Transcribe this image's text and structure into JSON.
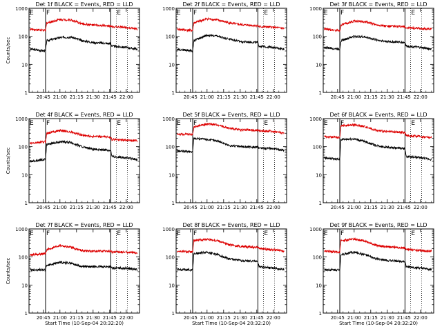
{
  "figure": {
    "ylabel": "Counts/sec",
    "xlabel": "Start Time (10-Sep-04 20:32:20)",
    "x_ticks": [
      "20:45",
      "21:00",
      "21:15",
      "21:30",
      "21:45",
      "22:00"
    ],
    "y_ticks": [
      "1",
      "10",
      "100",
      "1000"
    ],
    "marker_labels": [
      "E",
      "F",
      "E"
    ]
  },
  "colors": {
    "events": "#000000",
    "lld": "#dd0000",
    "axes": "#000000",
    "background": "#ffffff"
  },
  "chart_data": [
    {
      "type": "line",
      "title": "Det 1f BLACK = Events, RED = LLD",
      "xlabel": "",
      "ylabel": "Counts/sec",
      "ylog": true,
      "ylim": [
        1,
        1000
      ],
      "xlim": [
        "20:32",
        "22:12"
      ],
      "markers": {
        "solid": [
          "20:47",
          "21:46"
        ],
        "dotted": [
          "21:51",
          "22:01"
        ]
      },
      "series": [
        {
          "name": "Events",
          "x": [
            "20:33",
            "20:47",
            "20:48",
            "21:00",
            "21:10",
            "21:20",
            "21:30",
            "21:46",
            "21:47",
            "22:00",
            "22:10"
          ],
          "y": [
            35,
            30,
            70,
            90,
            95,
            70,
            60,
            55,
            45,
            40,
            35
          ]
        },
        {
          "name": "LLD",
          "x": [
            "20:33",
            "20:47",
            "20:48",
            "21:00",
            "21:10",
            "21:20",
            "21:30",
            "21:46",
            "21:47",
            "22:00",
            "22:10"
          ],
          "y": [
            180,
            160,
            300,
            400,
            380,
            280,
            250,
            230,
            220,
            210,
            180
          ]
        }
      ]
    },
    {
      "type": "line",
      "title": "Det 2f BLACK = Events, RED = LLD",
      "xlabel": "",
      "ylabel": "",
      "ylog": true,
      "ylim": [
        1,
        1000
      ],
      "xlim": [
        "20:32",
        "22:12"
      ],
      "markers": {
        "solid": [
          "20:47",
          "21:46"
        ],
        "dotted": [
          "21:51",
          "22:01"
        ]
      },
      "series": [
        {
          "name": "Events",
          "x": [
            "20:33",
            "20:47",
            "20:48",
            "21:00",
            "21:10",
            "21:20",
            "21:30",
            "21:46",
            "21:47",
            "22:00",
            "22:10"
          ],
          "y": [
            35,
            30,
            70,
            110,
            100,
            80,
            65,
            60,
            45,
            40,
            35
          ]
        },
        {
          "name": "LLD",
          "x": [
            "20:33",
            "20:47",
            "20:48",
            "21:00",
            "21:10",
            "21:20",
            "21:30",
            "21:46",
            "21:47",
            "22:00",
            "22:10"
          ],
          "y": [
            180,
            160,
            300,
            420,
            380,
            300,
            260,
            240,
            220,
            210,
            190
          ]
        }
      ]
    },
    {
      "type": "line",
      "title": "Det 3f BLACK = Events, RED = LLD",
      "xlabel": "",
      "ylabel": "",
      "ylog": true,
      "ylim": [
        1,
        1000
      ],
      "xlim": [
        "20:32",
        "22:12"
      ],
      "markers": {
        "solid": [
          "20:47",
          "21:46"
        ],
        "dotted": [
          "21:51",
          "22:01"
        ]
      },
      "series": [
        {
          "name": "Events",
          "x": [
            "20:33",
            "20:47",
            "20:48",
            "21:00",
            "21:10",
            "21:20",
            "21:30",
            "21:46",
            "21:47",
            "22:00",
            "22:10"
          ],
          "y": [
            40,
            35,
            70,
            100,
            95,
            75,
            65,
            60,
            45,
            40,
            35
          ]
        },
        {
          "name": "LLD",
          "x": [
            "20:33",
            "20:47",
            "20:48",
            "21:00",
            "21:10",
            "21:20",
            "21:30",
            "21:46",
            "21:47",
            "22:00",
            "22:10"
          ],
          "y": [
            180,
            160,
            250,
            350,
            330,
            260,
            230,
            220,
            200,
            190,
            180
          ]
        }
      ]
    },
    {
      "type": "line",
      "title": "Det 4f BLACK = Events, RED = LLD",
      "xlabel": "",
      "ylabel": "Counts/sec",
      "ylog": true,
      "ylim": [
        1,
        1000
      ],
      "xlim": [
        "20:32",
        "22:12"
      ],
      "markers": {
        "solid": [
          "20:47",
          "21:46"
        ],
        "dotted": [
          "21:51",
          "22:01"
        ]
      },
      "series": [
        {
          "name": "Events",
          "x": [
            "20:33",
            "20:47",
            "20:48",
            "21:00",
            "21:10",
            "21:20",
            "21:30",
            "21:46",
            "21:47",
            "22:00",
            "22:10"
          ],
          "y": [
            30,
            35,
            120,
            150,
            140,
            100,
            80,
            75,
            45,
            40,
            35
          ]
        },
        {
          "name": "LLD",
          "x": [
            "20:33",
            "20:47",
            "20:48",
            "21:00",
            "21:10",
            "21:20",
            "21:30",
            "21:46",
            "21:47",
            "22:00",
            "22:10"
          ],
          "y": [
            130,
            150,
            300,
            380,
            330,
            260,
            230,
            220,
            180,
            170,
            160
          ]
        }
      ]
    },
    {
      "type": "line",
      "title": "Det 5f BLACK = Events, RED = LLD",
      "xlabel": "",
      "ylabel": "",
      "ylog": true,
      "ylim": [
        1,
        1000
      ],
      "xlim": [
        "20:32",
        "22:12"
      ],
      "markers": {
        "solid": [
          "20:47",
          "21:46"
        ],
        "dotted": [
          "21:51",
          "22:01"
        ]
      },
      "series": [
        {
          "name": "Events",
          "x": [
            "20:33",
            "20:47",
            "20:48",
            "21:00",
            "21:10",
            "21:20",
            "21:30",
            "21:46",
            "21:47",
            "22:00",
            "22:10"
          ],
          "y": [
            70,
            65,
            200,
            180,
            160,
            110,
            100,
            95,
            90,
            85,
            75
          ]
        },
        {
          "name": "LLD",
          "x": [
            "20:33",
            "20:47",
            "20:48",
            "21:00",
            "21:10",
            "21:20",
            "21:30",
            "21:46",
            "21:47",
            "22:00",
            "22:10"
          ],
          "y": [
            280,
            270,
            500,
            650,
            600,
            450,
            400,
            380,
            370,
            350,
            300
          ]
        }
      ]
    },
    {
      "type": "line",
      "title": "Det 6f BLACK = Events, RED = LLD",
      "xlabel": "",
      "ylabel": "",
      "ylog": true,
      "ylim": [
        1,
        1000
      ],
      "xlim": [
        "20:32",
        "22:12"
      ],
      "markers": {
        "solid": [
          "20:47",
          "21:46"
        ],
        "dotted": [
          "21:51",
          "22:01"
        ]
      },
      "series": [
        {
          "name": "Events",
          "x": [
            "20:33",
            "20:47",
            "20:48",
            "21:00",
            "21:10",
            "21:20",
            "21:30",
            "21:46",
            "21:47",
            "22:00",
            "22:10"
          ],
          "y": [
            40,
            35,
            180,
            190,
            150,
            110,
            95,
            85,
            45,
            40,
            35
          ]
        },
        {
          "name": "LLD",
          "x": [
            "20:33",
            "20:47",
            "20:48",
            "21:00",
            "21:10",
            "21:20",
            "21:30",
            "21:46",
            "21:47",
            "22:00",
            "22:10"
          ],
          "y": [
            230,
            210,
            550,
            600,
            520,
            380,
            340,
            320,
            250,
            230,
            210
          ]
        }
      ]
    },
    {
      "type": "line",
      "title": "Det 7f BLACK = Events, RED = LLD",
      "xlabel": "Start Time (10-Sep-04 20:32:20)",
      "ylabel": "Counts/sec",
      "ylog": true,
      "ylim": [
        1,
        1000
      ],
      "xlim": [
        "20:32",
        "22:12"
      ],
      "markers": {
        "solid": [
          "20:47",
          "21:46"
        ],
        "dotted": [
          "21:51",
          "22:01"
        ]
      },
      "series": [
        {
          "name": "Events",
          "x": [
            "20:33",
            "20:47",
            "20:48",
            "21:00",
            "21:10",
            "21:20",
            "21:30",
            "21:46",
            "21:47",
            "22:00",
            "22:10"
          ],
          "y": [
            35,
            35,
            50,
            65,
            60,
            45,
            45,
            45,
            40,
            40,
            35
          ]
        },
        {
          "name": "LLD",
          "x": [
            "20:33",
            "20:47",
            "20:48",
            "21:00",
            "21:10",
            "21:20",
            "21:30",
            "21:46",
            "21:47",
            "22:00",
            "22:10"
          ],
          "y": [
            120,
            130,
            180,
            260,
            220,
            170,
            160,
            160,
            150,
            150,
            140
          ]
        }
      ]
    },
    {
      "type": "line",
      "title": "Det 8f BLACK = Events, RED = LLD",
      "xlabel": "Start Time (10-Sep-04 20:32:20)",
      "ylabel": "",
      "ylog": true,
      "ylim": [
        1,
        1000
      ],
      "xlim": [
        "20:32",
        "22:12"
      ],
      "markers": {
        "solid": [
          "20:47",
          "21:46"
        ],
        "dotted": [
          "21:51",
          "22:01"
        ]
      },
      "series": [
        {
          "name": "Events",
          "x": [
            "20:33",
            "20:47",
            "20:48",
            "21:00",
            "21:10",
            "21:20",
            "21:30",
            "21:46",
            "21:47",
            "22:00",
            "22:10"
          ],
          "y": [
            35,
            35,
            130,
            150,
            120,
            85,
            75,
            70,
            45,
            40,
            35
          ]
        },
        {
          "name": "LLD",
          "x": [
            "20:33",
            "20:47",
            "20:48",
            "21:00",
            "21:10",
            "21:20",
            "21:30",
            "21:46",
            "21:47",
            "22:00",
            "22:10"
          ],
          "y": [
            160,
            150,
            380,
            430,
            380,
            270,
            240,
            220,
            200,
            180,
            160
          ]
        }
      ]
    },
    {
      "type": "line",
      "title": "Det 9f BLACK = Events, RED = LLD",
      "xlabel": "Start Time (10-Sep-04 20:32:20)",
      "ylabel": "",
      "ylog": true,
      "ylim": [
        1,
        1000
      ],
      "xlim": [
        "20:32",
        "22:12"
      ],
      "markers": {
        "solid": [
          "20:47",
          "21:46"
        ],
        "dotted": [
          "21:51",
          "22:01"
        ]
      },
      "series": [
        {
          "name": "Events",
          "x": [
            "20:33",
            "20:47",
            "20:48",
            "21:00",
            "21:10",
            "21:20",
            "21:30",
            "21:46",
            "21:47",
            "22:00",
            "22:10"
          ],
          "y": [
            35,
            35,
            120,
            150,
            120,
            85,
            75,
            70,
            45,
            40,
            35
          ]
        },
        {
          "name": "LLD",
          "x": [
            "20:33",
            "20:47",
            "20:48",
            "21:00",
            "21:10",
            "21:20",
            "21:30",
            "21:46",
            "21:47",
            "22:00",
            "22:10"
          ],
          "y": [
            160,
            150,
            380,
            430,
            370,
            260,
            230,
            210,
            190,
            170,
            160
          ]
        }
      ]
    }
  ]
}
